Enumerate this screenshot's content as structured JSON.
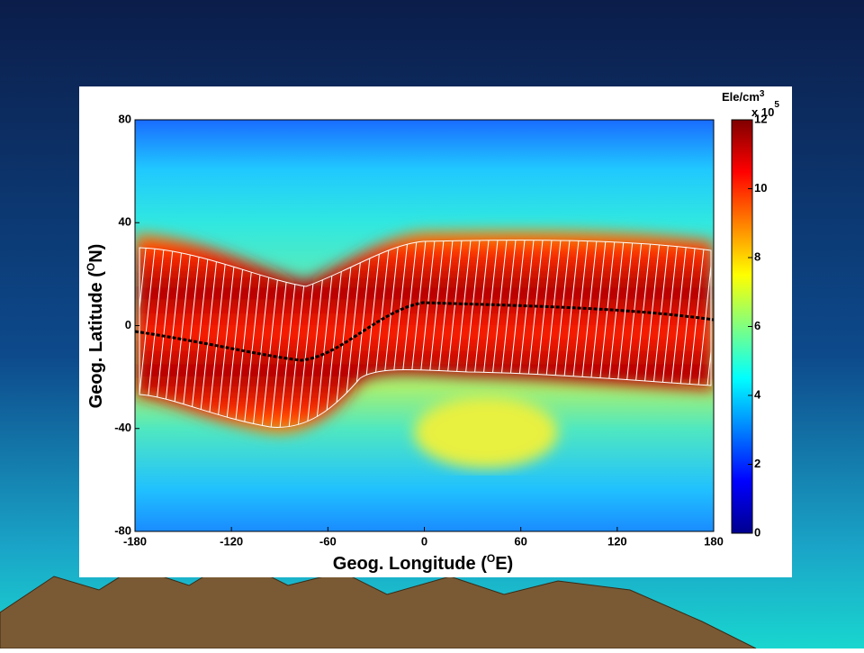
{
  "chart_data": {
    "type": "heatmap",
    "x_label": [
      "Geog. Longitude (",
      "O",
      "E)"
    ],
    "y_label": [
      "Geog. Latitude (",
      "O",
      "N)"
    ],
    "xlim": [
      -180,
      180
    ],
    "xticks": [
      -180,
      -120,
      -60,
      0,
      60,
      120,
      180
    ],
    "ylim": [
      -80,
      80
    ],
    "yticks": [
      -80,
      -40,
      0,
      40,
      80
    ],
    "colorbar": {
      "label": [
        "Ele/cm",
        "3"
      ],
      "scale_label": [
        "x 10",
        "5"
      ],
      "lim": [
        0,
        12
      ],
      "ticks": [
        0,
        2,
        4,
        6,
        8,
        10,
        12
      ],
      "colors": [
        "#00008f",
        "#0000ff",
        "#0080ff",
        "#00ffff",
        "#80ff80",
        "#ffff00",
        "#ff8000",
        "#ff0000",
        "#800000"
      ]
    }
  }
}
